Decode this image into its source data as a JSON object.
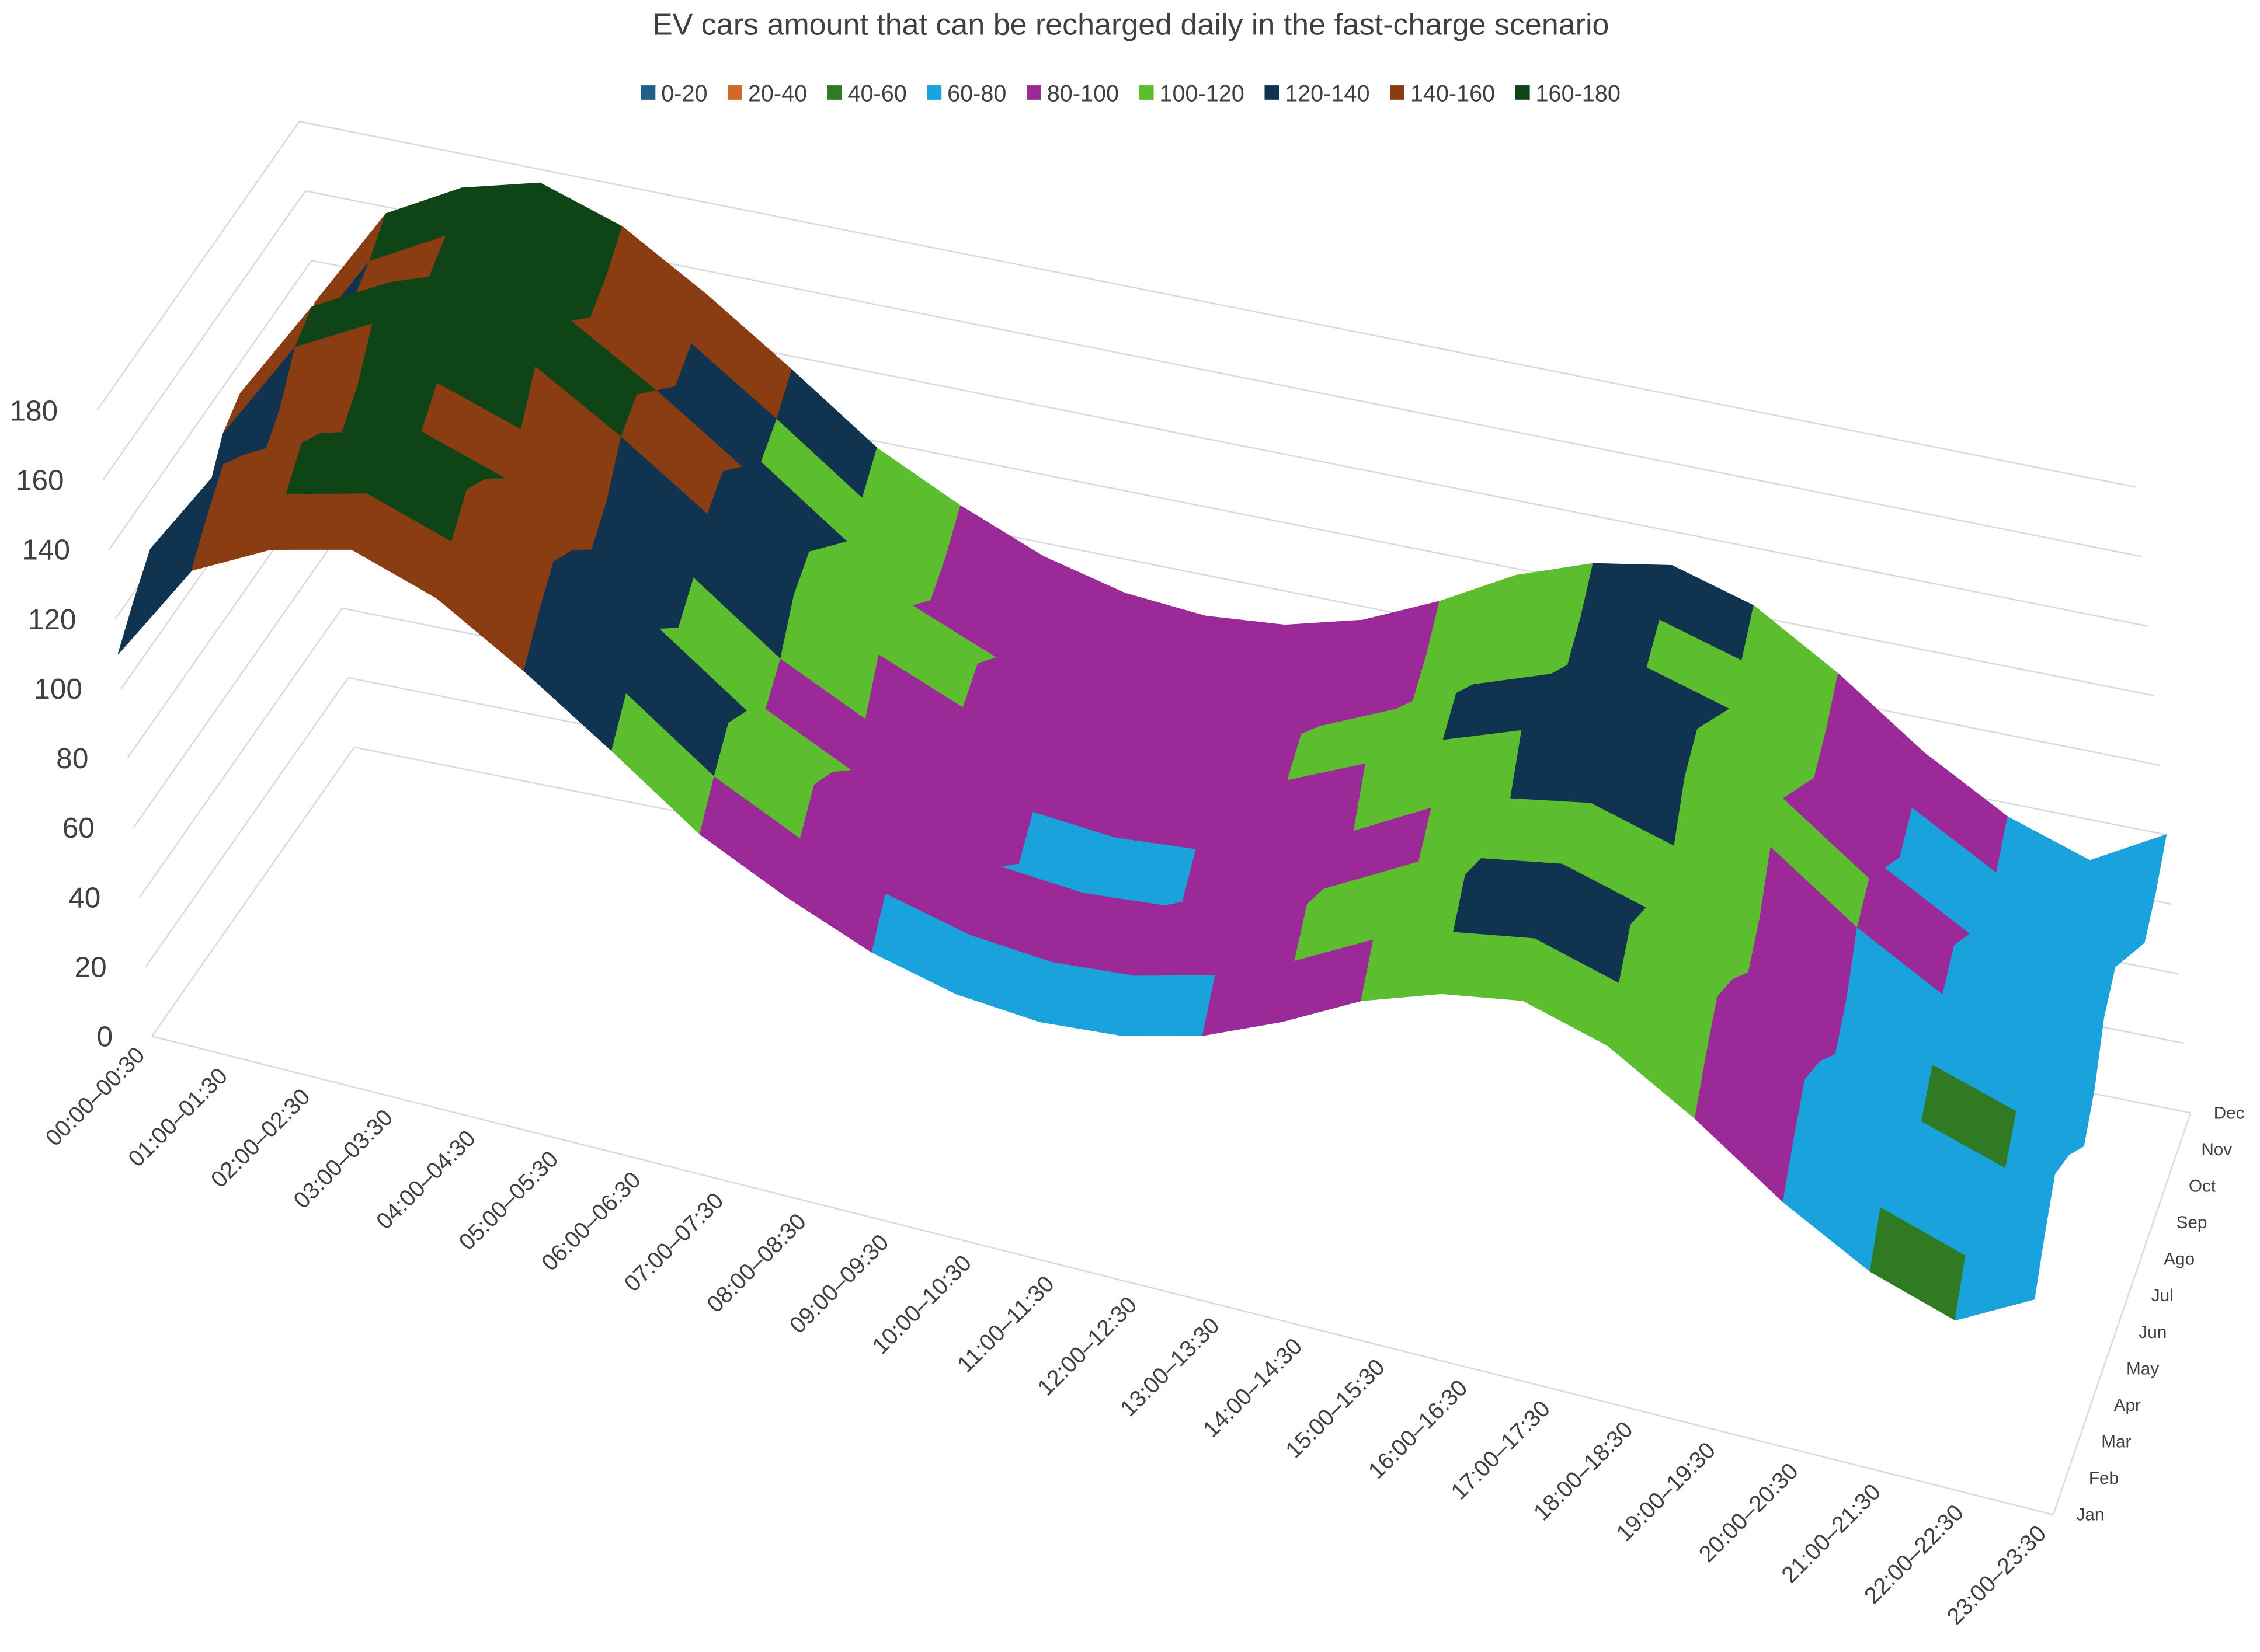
{
  "chart_data": {
    "type": "surface",
    "title": "EV cars amount that can be recharged daily in the fast-charge scenario",
    "x": [
      "00:00–00:30",
      "01:00–01:30",
      "02:00–02:30",
      "03:00–03:30",
      "04:00–04:30",
      "05:00–05:30",
      "06:00–06:30",
      "07:00–07:30",
      "08:00–08:30",
      "09:00–09:30",
      "10:00–10:30",
      "11:00–11:30",
      "12:00–12:30",
      "13:00–13:30",
      "14:00–14:30",
      "15:00–15:30",
      "16:00–16:30",
      "17:00–17:30",
      "18:00–18:30",
      "19:00–19:30",
      "20:00–20:30",
      "21:00–21:30",
      "22:00–22:30",
      "23:00–23:30"
    ],
    "y": [
      "Jan",
      "Feb",
      "Mar",
      "Apr",
      "May",
      "Jun",
      "Jul",
      "Ago",
      "Sep",
      "Oct",
      "Nov",
      "Dec"
    ],
    "values": [
      [
        110,
        140,
        152,
        158,
        150,
        135,
        118,
        100,
        88,
        78,
        72,
        70,
        72,
        78,
        88,
        100,
        108,
        112,
        105,
        90,
        72,
        58,
        50,
        62
      ],
      [
        118,
        148,
        160,
        166,
        158,
        143,
        126,
        108,
        96,
        86,
        80,
        78,
        80,
        86,
        96,
        108,
        116,
        120,
        113,
        98,
        80,
        66,
        58,
        70
      ],
      [
        125,
        155,
        167,
        173,
        165,
        150,
        133,
        115,
        103,
        93,
        87,
        85,
        87,
        93,
        103,
        115,
        123,
        127,
        120,
        105,
        87,
        73,
        65,
        77
      ],
      [
        120,
        150,
        162,
        168,
        160,
        145,
        128,
        110,
        98,
        88,
        82,
        80,
        82,
        88,
        98,
        110,
        118,
        122,
        115,
        100,
        82,
        68,
        60,
        72
      ],
      [
        112,
        142,
        154,
        160,
        152,
        137,
        120,
        102,
        90,
        80,
        74,
        72,
        74,
        80,
        90,
        102,
        110,
        114,
        107,
        92,
        74,
        60,
        52,
        64
      ],
      [
        118,
        148,
        160,
        166,
        158,
        143,
        126,
        108,
        96,
        86,
        80,
        78,
        80,
        86,
        96,
        108,
        116,
        120,
        113,
        98,
        80,
        66,
        58,
        70
      ],
      [
        128,
        158,
        170,
        176,
        168,
        153,
        136,
        118,
        106,
        96,
        90,
        88,
        90,
        96,
        106,
        118,
        126,
        130,
        123,
        108,
        90,
        76,
        68,
        80
      ],
      [
        132,
        162,
        174,
        180,
        172,
        157,
        140,
        122,
        110,
        100,
        94,
        92,
        94,
        100,
        110,
        122,
        130,
        134,
        127,
        112,
        94,
        80,
        72,
        84
      ],
      [
        125,
        155,
        167,
        173,
        165,
        150,
        133,
        115,
        103,
        93,
        87,
        85,
        87,
        93,
        103,
        115,
        123,
        127,
        120,
        105,
        87,
        73,
        65,
        77
      ],
      [
        118,
        148,
        160,
        166,
        158,
        143,
        126,
        108,
        96,
        86,
        80,
        78,
        80,
        86,
        96,
        108,
        116,
        120,
        113,
        98,
        80,
        66,
        58,
        70
      ],
      [
        122,
        152,
        164,
        170,
        162,
        147,
        130,
        112,
        100,
        90,
        84,
        82,
        84,
        90,
        100,
        112,
        120,
        124,
        117,
        102,
        84,
        70,
        62,
        74
      ],
      [
        128,
        158,
        170,
        176,
        168,
        153,
        136,
        118,
        106,
        96,
        90,
        88,
        90,
        96,
        106,
        118,
        126,
        130,
        123,
        108,
        90,
        76,
        68,
        80
      ]
    ],
    "zlim": [
      0,
      180
    ],
    "zticks": [
      0,
      20,
      40,
      60,
      80,
      100,
      120,
      140,
      160,
      180
    ],
    "grid": true,
    "legend": [
      {
        "name": "0-20",
        "color": "#1f5f88"
      },
      {
        "name": "20-40",
        "color": "#d2692a"
      },
      {
        "name": "40-60",
        "color": "#2f7a22"
      },
      {
        "name": "60-80",
        "color": "#1aa2dc"
      },
      {
        "name": "80-100",
        "color": "#9b2a98"
      },
      {
        "name": "100-120",
        "color": "#5cbd2e"
      },
      {
        "name": "120-140",
        "color": "#10344f"
      },
      {
        "name": "140-160",
        "color": "#8a3c12"
      },
      {
        "name": "160-180",
        "color": "#0f4416"
      }
    ]
  }
}
